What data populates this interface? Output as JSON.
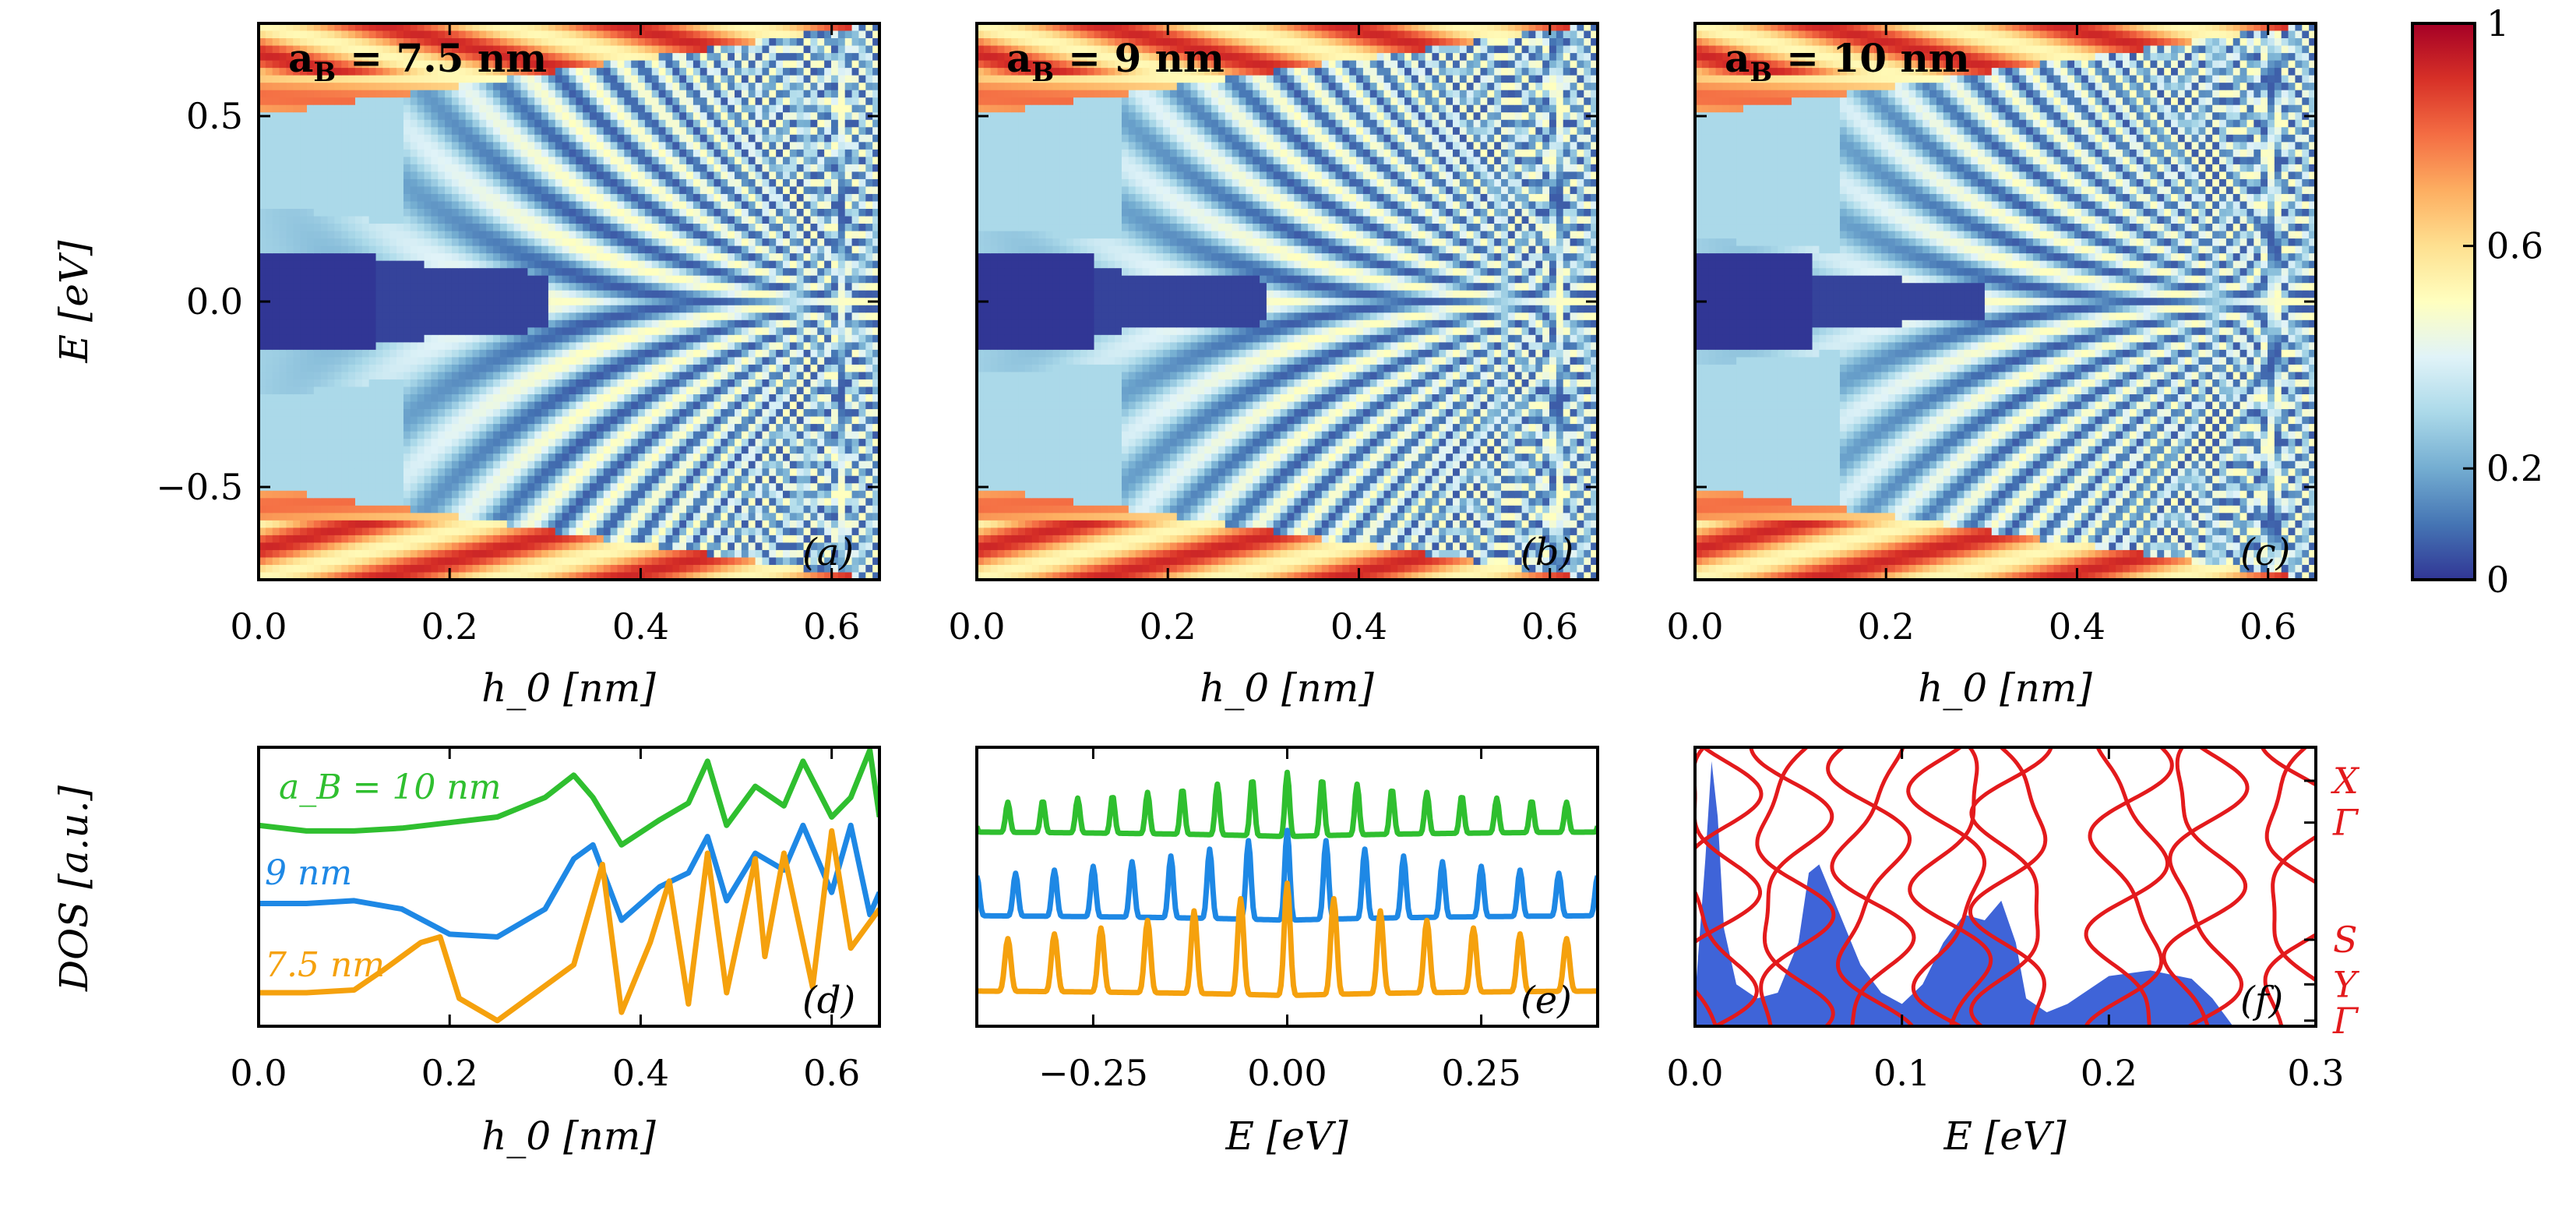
{
  "chart_data": [
    {
      "id": "a",
      "type": "heatmap",
      "panel_tag": "(a)",
      "title": "a_B = 7.5 nm",
      "title_main": "a",
      "title_sub": "B",
      "title_rest": "= 7.5 nm",
      "xlabel": "h_0 [nm]",
      "ylabel": "E [eV]",
      "xlim": [
        0,
        0.65
      ],
      "ylim": [
        -0.75,
        0.75
      ],
      "xticks": [
        "0.0",
        "0.2",
        "0.4",
        "0.6"
      ],
      "xtick_values": [
        0,
        0.2,
        0.4,
        0.6
      ],
      "yticks": [
        "0.5",
        "0.0",
        "−0.5"
      ],
      "ytick_values": [
        0.5,
        0,
        -0.5
      ],
      "gap_half_width_at_h0": 0.26,
      "gap_closing_h0": 0.62
    },
    {
      "id": "b",
      "type": "heatmap",
      "panel_tag": "(b)",
      "title": "a_B = 9 nm",
      "title_main": "a",
      "title_sub": "B",
      "title_rest": "= 9 nm",
      "xlabel": "h_0 [nm]",
      "xlim": [
        0,
        0.65
      ],
      "ylim": [
        -0.75,
        0.75
      ],
      "xticks": [
        "0.0",
        "0.2",
        "0.4",
        "0.6"
      ],
      "xtick_values": [
        0,
        0.2,
        0.4,
        0.6
      ],
      "gap_half_width_at_h0": 0.2,
      "gap_closing_h0": 0.62
    },
    {
      "id": "c",
      "type": "heatmap",
      "panel_tag": "(c)",
      "title": "a_B = 10 nm",
      "title_main": "a",
      "title_sub": "B",
      "title_rest": "= 10 nm",
      "xlabel": "h_0 [nm]",
      "xlim": [
        0,
        0.65
      ],
      "ylim": [
        -0.75,
        0.75
      ],
      "xticks": [
        "0.0",
        "0.2",
        "0.4",
        "0.6"
      ],
      "xtick_values": [
        0,
        0.2,
        0.4,
        0.6
      ],
      "gap_half_width_at_h0": 0.17,
      "gap_closing_h0": 0.62
    },
    {
      "id": "colorbar",
      "type": "colorbar",
      "ticks": [
        "1",
        "0.6",
        "0.2",
        "0"
      ],
      "tick_values": [
        1,
        0.6,
        0.2,
        0
      ],
      "colors": [
        "#313695",
        "#4575b4",
        "#74add1",
        "#abd9e9",
        "#e0f3f8",
        "#ffffbf",
        "#fee090",
        "#fdae61",
        "#f46d43",
        "#d73027",
        "#a50026"
      ]
    },
    {
      "id": "d",
      "type": "line",
      "panel_tag": "(d)",
      "xlabel": "h_0 [nm]",
      "ylabel": "DOS [a.u.]",
      "xlim": [
        0,
        0.65
      ],
      "ylim": [
        0,
        1
      ],
      "xticks": [
        "0.0",
        "0.2",
        "0.4",
        "0.6"
      ],
      "xtick_values": [
        0,
        0.2,
        0.4,
        0.6
      ],
      "series": [
        {
          "name": "a_B = 10 nm",
          "legend": "a_B = 10 nm",
          "color": "#2fbf2f",
          "x": [
            0,
            0.05,
            0.1,
            0.15,
            0.2,
            0.25,
            0.3,
            0.33,
            0.35,
            0.38,
            0.42,
            0.45,
            0.47,
            0.49,
            0.52,
            0.55,
            0.57,
            0.6,
            0.62,
            0.64,
            0.65
          ],
          "y": [
            0.72,
            0.7,
            0.7,
            0.71,
            0.73,
            0.75,
            0.82,
            0.9,
            0.82,
            0.65,
            0.74,
            0.8,
            0.95,
            0.72,
            0.86,
            0.79,
            0.95,
            0.75,
            0.82,
            0.99,
            0.75
          ]
        },
        {
          "name": "9 nm",
          "legend": "9 nm",
          "color": "#1e88e5",
          "x": [
            0,
            0.05,
            0.1,
            0.15,
            0.2,
            0.25,
            0.3,
            0.33,
            0.35,
            0.38,
            0.42,
            0.45,
            0.47,
            0.49,
            0.52,
            0.55,
            0.57,
            0.6,
            0.62,
            0.64,
            0.65
          ],
          "y": [
            0.44,
            0.44,
            0.45,
            0.42,
            0.33,
            0.32,
            0.42,
            0.6,
            0.65,
            0.38,
            0.5,
            0.55,
            0.68,
            0.45,
            0.62,
            0.56,
            0.72,
            0.48,
            0.72,
            0.4,
            0.48
          ]
        },
        {
          "name": "7.5 nm",
          "legend": "7.5 nm",
          "color": "#f5a10d",
          "x": [
            0,
            0.05,
            0.1,
            0.13,
            0.17,
            0.19,
            0.21,
            0.25,
            0.29,
            0.33,
            0.36,
            0.38,
            0.41,
            0.43,
            0.45,
            0.47,
            0.49,
            0.52,
            0.53,
            0.55,
            0.58,
            0.6,
            0.62,
            0.65
          ],
          "y": [
            0.12,
            0.12,
            0.13,
            0.2,
            0.3,
            0.32,
            0.1,
            0.02,
            0.12,
            0.22,
            0.58,
            0.05,
            0.3,
            0.52,
            0.08,
            0.62,
            0.12,
            0.6,
            0.25,
            0.62,
            0.14,
            0.7,
            0.28,
            0.42
          ]
        }
      ]
    },
    {
      "id": "e",
      "type": "line",
      "panel_tag": "(e)",
      "xlabel": "E [eV]",
      "xlim": [
        -0.4,
        0.4
      ],
      "ylim": [
        0,
        1
      ],
      "xticks": [
        "−0.25",
        "0.00",
        "0.25"
      ],
      "xtick_values": [
        -0.25,
        0,
        0.25
      ],
      "series": [
        {
          "name": "a_B = 10 nm",
          "color": "#2fbf2f",
          "baseline": 0.7,
          "amplitude": 0.2,
          "peak_spacing": 0.045
        },
        {
          "name": "9 nm",
          "color": "#1e88e5",
          "baseline": 0.4,
          "amplitude": 0.28,
          "peak_spacing": 0.05
        },
        {
          "name": "7.5 nm",
          "color": "#f5a10d",
          "baseline": 0.13,
          "amplitude": 0.35,
          "peak_spacing": 0.06
        }
      ]
    },
    {
      "id": "f",
      "type": "area+line",
      "panel_tag": "(f)",
      "xlabel": "E [eV]",
      "xlim": [
        0,
        0.3
      ],
      "ylim": [
        0,
        1
      ],
      "xticks": [
        "0.0",
        "0.1",
        "0.2",
        "0.3"
      ],
      "xtick_values": [
        0,
        0.1,
        0.2,
        0.3
      ],
      "dos_color": "#3f64d8",
      "band_color": "#e31a1c",
      "dos": {
        "x": [
          0,
          0.005,
          0.008,
          0.011,
          0.014,
          0.02,
          0.03,
          0.04,
          0.05,
          0.055,
          0.06,
          0.07,
          0.08,
          0.09,
          0.1,
          0.11,
          0.12,
          0.13,
          0.14,
          0.148,
          0.155,
          0.16,
          0.17,
          0.18,
          0.2,
          0.22,
          0.24,
          0.25,
          0.26
        ],
        "y": [
          0.1,
          0.6,
          0.95,
          0.75,
          0.35,
          0.15,
          0.1,
          0.12,
          0.3,
          0.55,
          0.58,
          0.4,
          0.22,
          0.12,
          0.08,
          0.15,
          0.3,
          0.4,
          0.38,
          0.45,
          0.3,
          0.1,
          0.05,
          0.08,
          0.18,
          0.2,
          0.17,
          0.1,
          0.0
        ]
      },
      "k_labels": [
        "X",
        "Γ",
        "S",
        "Y",
        "Γ"
      ],
      "k_label_positions": [
        0.88,
        0.73,
        0.31,
        0.15,
        0.02
      ]
    }
  ]
}
